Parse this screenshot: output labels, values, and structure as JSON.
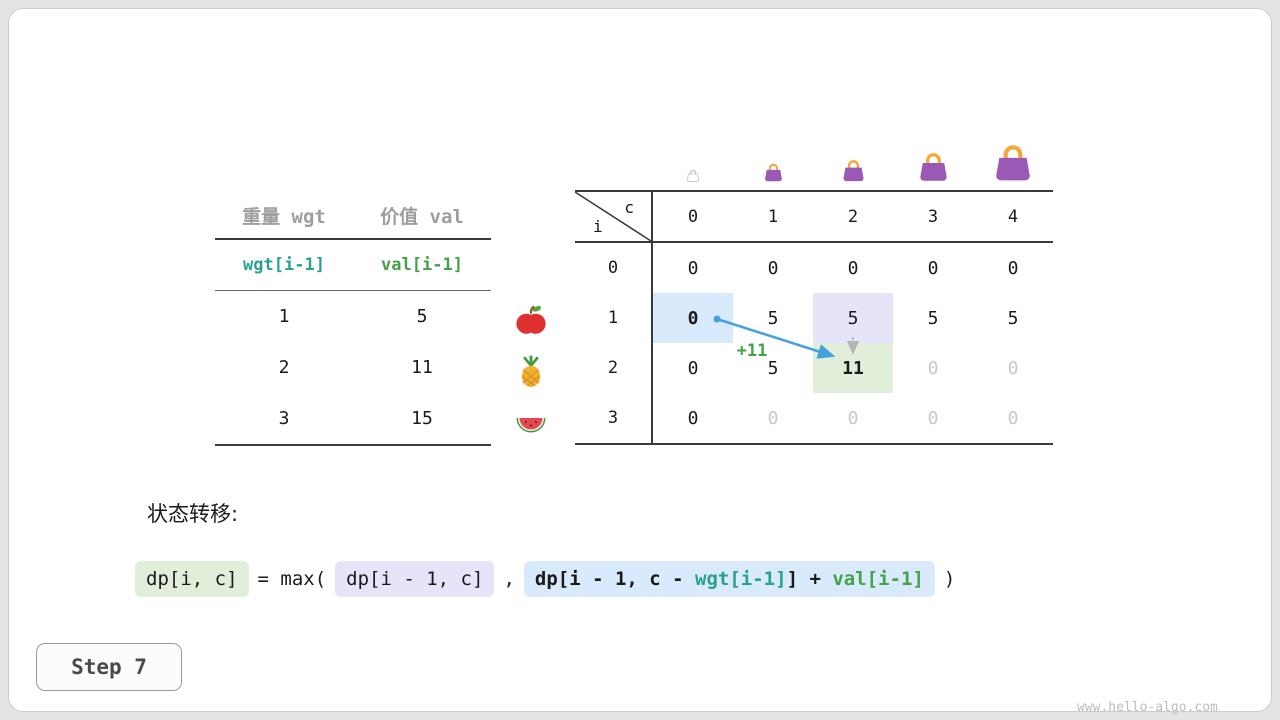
{
  "step_label": "Step 7",
  "watermark": "www.hello-algo.com",
  "items_table": {
    "col_headers": [
      "重量 wgt",
      "价值 val"
    ],
    "formula_row": [
      "wgt[i-1]",
      "val[i-1]"
    ],
    "rows": [
      {
        "wgt": "1",
        "val": "5",
        "fruit": "apple-icon"
      },
      {
        "wgt": "2",
        "val": "11",
        "fruit": "pineapple-icon"
      },
      {
        "wgt": "3",
        "val": "15",
        "fruit": "watermelon-icon"
      }
    ]
  },
  "dp_table": {
    "corner": {
      "col_label": "c",
      "row_label": "i"
    },
    "col_headers": [
      "0",
      "1",
      "2",
      "3",
      "4"
    ],
    "row_headers": [
      "0",
      "1",
      "2",
      "3"
    ],
    "cells": [
      [
        "0",
        "0",
        "0",
        "0",
        "0"
      ],
      [
        "0",
        "5",
        "5",
        "5",
        "5"
      ],
      [
        "0",
        "5",
        "11",
        "0",
        "0"
      ],
      [
        "0",
        "0",
        "0",
        "0",
        "0"
      ]
    ],
    "cell_states": [
      [
        "normal",
        "normal",
        "normal",
        "normal",
        "normal"
      ],
      [
        "hl-blue",
        "normal",
        "hl-purple",
        "normal",
        "normal"
      ],
      [
        "normal",
        "normal",
        "hl-green",
        "faded",
        "faded"
      ],
      [
        "normal",
        "faded",
        "faded",
        "faded",
        "faded"
      ]
    ],
    "annotation": "+11"
  },
  "transition": {
    "heading": "状态转移:",
    "lhs": "dp[i, c]",
    "operator": "= max(",
    "option1": "dp[i - 1, c]",
    "separator": ",",
    "option2_prefix": "dp[i - 1, c - ",
    "option2_wgt": "wgt[i-1]",
    "option2_mid": "] + ",
    "option2_val": "val[i-1]",
    "close": ")"
  },
  "colors": {
    "teal": "#29a094",
    "green": "#44a248",
    "arrow_blue": "#45a1dc",
    "gray_faded": "#c9c9c9",
    "header_gray": "#9e9e9e",
    "hl_blue": "#d9eafc",
    "hl_purple": "#e5e4f8",
    "hl_green": "#e1eed9",
    "bag_purple": "#9b59b6",
    "bag_handle": "#f2a93c"
  }
}
